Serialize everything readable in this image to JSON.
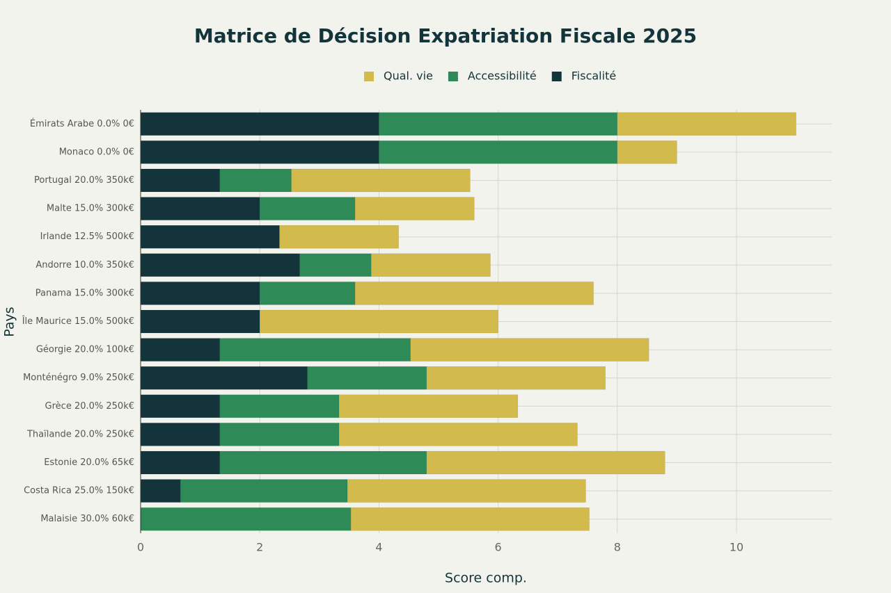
{
  "chart_data": {
    "type": "stacked-bar-horizontal",
    "title": "Matrice de Décision Expatriation Fiscale 2025",
    "x_label": "Score comp.",
    "y_label": "Pays",
    "categories": [
      "Émirats Arabe 0.0% 0€",
      "Monaco 0.0% 0€",
      "Portugal 20.0% 350k€",
      "Malte 15.0% 300k€",
      "Irlande 12.5% 500k€",
      "Andorre 10.0% 350k€",
      "Panama 15.0% 300k€",
      "Île Maurice 15.0% 500k€",
      "Géorgie 20.0% 100k€",
      "Monténégro 9.0% 250k€",
      "Grèce 20.0% 250k€",
      "Thaïlande 20.0% 250k€",
      "Estonie 20.0% 65k€",
      "Costa Rica 25.0% 150k€",
      "Malaisie 30.0% 60k€"
    ],
    "series": [
      {
        "name": "Qual. vie",
        "color": "#d2ba4c",
        "values": [
          3,
          1,
          3,
          2,
          2,
          2,
          4,
          4,
          4,
          3,
          3,
          4,
          4,
          4,
          4
        ]
      },
      {
        "name": "Accessibilité",
        "color": "#2e8b57",
        "values": [
          4,
          4,
          1.2,
          1.6,
          0,
          1.2,
          1.6,
          0,
          3.2,
          2,
          2,
          2,
          3.47,
          2.8,
          3.53
        ]
      },
      {
        "name": "Fiscalité",
        "color": "#13343b",
        "values": [
          4,
          4,
          1.33,
          2,
          2.33,
          2.67,
          2,
          2,
          1.33,
          2.8,
          1.33,
          1.33,
          1.33,
          0.67,
          0
        ]
      }
    ],
    "xlim": [
      0,
      11.6
    ],
    "xticks": [
      0,
      2,
      4,
      6,
      8,
      10
    ],
    "grid": true
  }
}
